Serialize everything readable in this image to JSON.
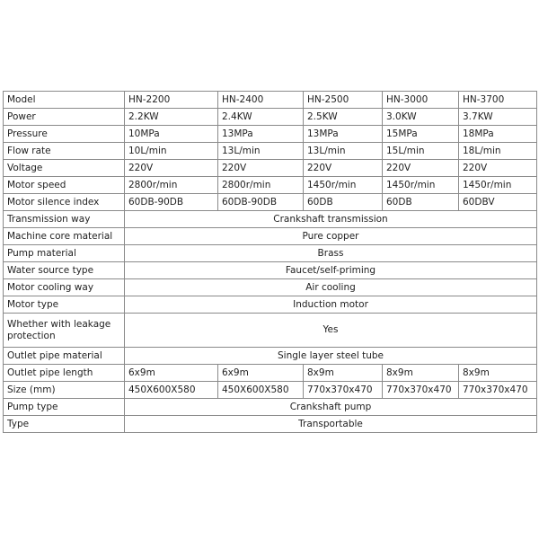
{
  "rows": [
    {
      "label": "Model",
      "values": [
        "HN-2200",
        "HN-2400",
        "HN-2500",
        "HN-3000",
        "HN-3700"
      ]
    },
    {
      "label": "Power",
      "values": [
        "2.2KW",
        "2.4KW",
        "2.5KW",
        "3.0KW",
        "3.7KW"
      ]
    },
    {
      "label": "Pressure",
      "values": [
        "10MPa",
        "13MPa",
        "13MPa",
        "15MPa",
        "18MPa"
      ]
    },
    {
      "label": "Flow rate",
      "values": [
        "10L/min",
        "13L/min",
        "13L/min",
        "15L/min",
        "18L/min"
      ]
    },
    {
      "label": "Voltage",
      "values": [
        "220V",
        "220V",
        "220V",
        "220V",
        "220V"
      ]
    },
    {
      "label": "Motor speed",
      "values": [
        "2800r/min",
        "2800r/min",
        "1450r/min",
        "1450r/min",
        "1450r/min"
      ]
    },
    {
      "label": "Motor silence index",
      "values": [
        "60DB-90DB",
        "60DB-90DB",
        "60DB",
        "60DB",
        "60DBV"
      ]
    },
    {
      "label": "Transmission way",
      "merged": "Crankshaft transmission"
    },
    {
      "label": "Machine core material",
      "merged": "Pure copper"
    },
    {
      "label": "Pump material",
      "merged": "Brass"
    },
    {
      "label": "Water source type",
      "merged": "Faucet/self-priming"
    },
    {
      "label": "Motor cooling way",
      "merged": "Air cooling"
    },
    {
      "label": "Motor type",
      "merged": "Induction motor"
    },
    {
      "label": "Whether with leakage protection",
      "merged": "Yes",
      "tall": true
    },
    {
      "label": "Outlet pipe material",
      "merged": "Single layer steel tube"
    },
    {
      "label": "Outlet pipe length",
      "values": [
        "6x9m",
        "6x9m",
        "8x9m",
        "8x9m",
        "8x9m"
      ]
    },
    {
      "label": "Size (mm)",
      "values": [
        "450X600X580",
        "450X600X580",
        "770x370x470",
        "770x370x470",
        "770x370x470"
      ]
    },
    {
      "label": "Pump type",
      "merged": "Crankshaft pump"
    },
    {
      "label": "Type",
      "merged": "Transportable"
    }
  ]
}
